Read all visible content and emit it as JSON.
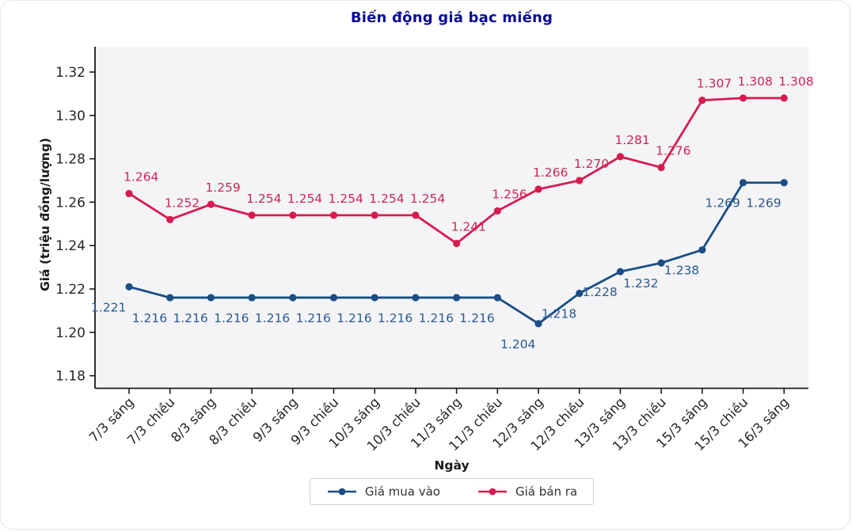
{
  "chart_data": {
    "type": "line",
    "title": "Biến động giá bạc miếng",
    "xlabel": "Ngày",
    "ylabel": "Giá (triệu đồng/lượng)",
    "categories": [
      "7/3 sáng",
      "7/3 chiều",
      "8/3 sáng",
      "8/3 chiều",
      "9/3 sáng",
      "9/3 chiều",
      "10/3 sáng",
      "10/3 chiều",
      "11/3 sáng",
      "11/3 chiều",
      "12/3 sáng",
      "12/3 chiều",
      "13/3 sáng",
      "13/3 chiều",
      "15/3 sáng",
      "15/3 chiều",
      "16/3 sáng"
    ],
    "series": [
      {
        "name": "Giá mua vào",
        "color": "#1a4e85",
        "label_color": "#2a5a92",
        "values": [
          1.221,
          1.216,
          1.216,
          1.216,
          1.216,
          1.216,
          1.216,
          1.216,
          1.216,
          1.216,
          1.204,
          1.218,
          1.228,
          1.232,
          1.238,
          1.269,
          1.269
        ]
      },
      {
        "name": "Giá bán ra",
        "color": "#d81b4f",
        "label_color": "#d02553",
        "values": [
          1.264,
          1.252,
          1.259,
          1.254,
          1.254,
          1.254,
          1.254,
          1.254,
          1.241,
          1.256,
          1.266,
          1.27,
          1.281,
          1.276,
          1.307,
          1.308,
          1.308
        ]
      }
    ],
    "yticks": [
      1.18,
      1.2,
      1.22,
      1.24,
      1.26,
      1.28,
      1.3,
      1.32
    ],
    "ylim": [
      1.176,
      1.333
    ],
    "grid": false,
    "legend_position": "bottom-center",
    "value_label_decimals": 3,
    "ytick_decimals": 2
  },
  "colors": {
    "title": "#0b0b96",
    "tick_text": "#262626",
    "plot_bg": "#f4f4f6",
    "axis": "#1a1a1a"
  }
}
